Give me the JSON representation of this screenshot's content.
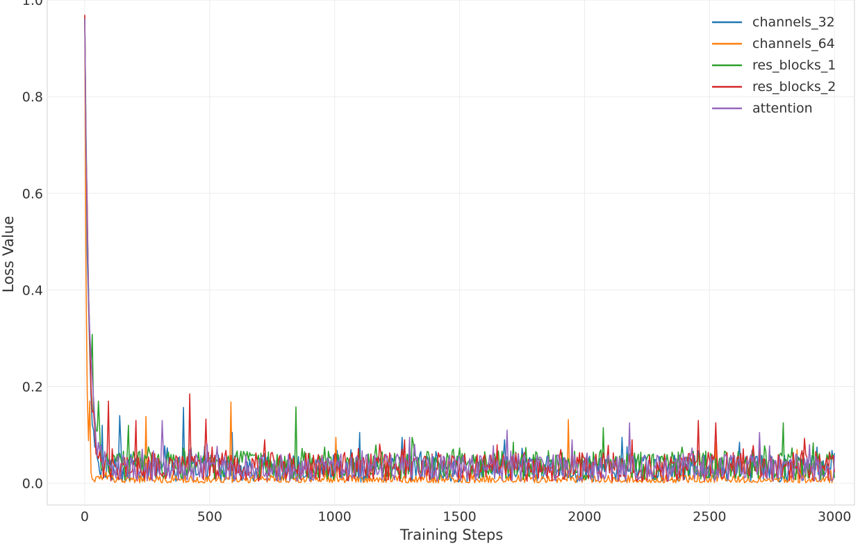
{
  "chart_data": {
    "type": "line",
    "title": "",
    "xlabel": "Training Steps",
    "ylabel": "Loss Value",
    "xlim": [
      -150,
      3080
    ],
    "ylim": [
      -0.045,
      1.0
    ],
    "xticks": [
      0,
      500,
      1000,
      1500,
      2000,
      2500,
      3000
    ],
    "yticks": [
      0.0,
      0.2,
      0.4,
      0.6,
      0.8,
      1.0
    ],
    "ytick_labels": [
      "0.0",
      "0.2",
      "0.4",
      "0.6",
      "0.8",
      "1.0"
    ],
    "grid": true,
    "legend_position": "top-right",
    "series": [
      {
        "name": "channels_32",
        "color": "#1f77b4",
        "start": 0.96,
        "decay": 14,
        "base": 0.022,
        "noise": 0.028,
        "spike_max": 0.16,
        "peaks": [
          [
            70,
            0.12
          ],
          [
            140,
            0.14
          ],
          [
            395,
            0.157
          ],
          [
            590,
            0.105
          ],
          [
            1100,
            0.105
          ],
          [
            1270,
            0.095
          ],
          [
            1680,
            0.09
          ],
          [
            2150,
            0.095
          ],
          [
            2620,
            0.085
          ],
          [
            2930,
            0.075
          ],
          [
            2990,
            0.068
          ]
        ]
      },
      {
        "name": "channels_64",
        "color": "#ff7f0e",
        "start": 0.965,
        "decay": 6,
        "base": 0.004,
        "noise": 0.01,
        "spike_max": 0.17,
        "peaks": [
          [
            20,
            0.17
          ],
          [
            245,
            0.138
          ],
          [
            585,
            0.168
          ],
          [
            1005,
            0.095
          ],
          [
            1935,
            0.132
          ],
          [
            2525,
            0.085
          ],
          [
            2850,
            0.07
          ]
        ]
      },
      {
        "name": "res_blocks_1",
        "color": "#2ca02c",
        "start": 0.96,
        "decay": 16,
        "base": 0.028,
        "noise": 0.03,
        "spike_max": 0.31,
        "peaks": [
          [
            30,
            0.308
          ],
          [
            55,
            0.17
          ],
          [
            175,
            0.12
          ],
          [
            845,
            0.158
          ],
          [
            1310,
            0.095
          ],
          [
            1715,
            0.085
          ],
          [
            2075,
            0.115
          ],
          [
            2795,
            0.125
          ],
          [
            2980,
            0.065
          ]
        ]
      },
      {
        "name": "res_blocks_2",
        "color": "#d62728",
        "start": 0.965,
        "decay": 15,
        "base": 0.025,
        "noise": 0.03,
        "spike_max": 0.185,
        "peaks": [
          [
            95,
            0.17
          ],
          [
            205,
            0.13
          ],
          [
            420,
            0.185
          ],
          [
            485,
            0.133
          ],
          [
            720,
            0.09
          ],
          [
            1280,
            0.09
          ],
          [
            2190,
            0.09
          ],
          [
            2455,
            0.13
          ],
          [
            2525,
            0.125
          ],
          [
            2880,
            0.093
          ]
        ]
      },
      {
        "name": "attention",
        "color": "#9467bd",
        "start": 0.955,
        "decay": 17,
        "base": 0.024,
        "noise": 0.028,
        "spike_max": 0.13,
        "peaks": [
          [
            310,
            0.13
          ],
          [
            1300,
            0.095
          ],
          [
            1690,
            0.11
          ],
          [
            1950,
            0.09
          ],
          [
            2180,
            0.125
          ],
          [
            2700,
            0.105
          ],
          [
            2900,
            0.08
          ]
        ]
      }
    ]
  }
}
